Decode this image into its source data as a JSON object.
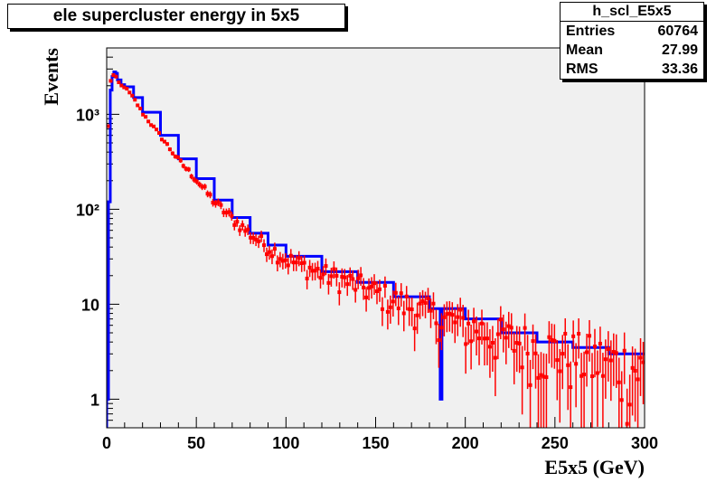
{
  "chart_data": {
    "type": "line",
    "title": "ele supercluster energy in 5x5",
    "xlabel": "E5x5 (GeV)",
    "ylabel": "Events",
    "xlim": [
      0,
      300
    ],
    "ylim": [
      0.5,
      5000
    ],
    "yscale": "log",
    "xticks": [
      0,
      50,
      100,
      150,
      200,
      250,
      300
    ],
    "xtick_labels": [
      "0",
      "50",
      "100",
      "150",
      "200",
      "250",
      "300"
    ],
    "yticks": [
      1,
      10,
      100,
      1000
    ],
    "ytick_labels": [
      "1",
      "10",
      "10²",
      "10³"
    ],
    "stats": {
      "name": "h_scl_E5x5",
      "rows": [
        {
          "label": "Entries",
          "value": "60764"
        },
        {
          "label": "Mean",
          "value": "27.99"
        },
        {
          "label": "RMS",
          "value": "33.36"
        }
      ]
    },
    "series": [
      {
        "color": "#0000ff",
        "style": "histogram-step",
        "x": [
          0,
          1,
          2,
          3,
          4,
          5,
          6,
          8,
          10,
          15,
          20,
          30,
          40,
          50,
          60,
          70,
          80,
          90,
          100,
          120,
          140,
          160,
          180,
          186,
          187,
          200,
          220,
          240,
          260,
          280,
          300
        ],
        "y": [
          1,
          120,
          1800,
          2500,
          2800,
          2700,
          2300,
          2050,
          1950,
          1500,
          1050,
          600,
          340,
          210,
          125,
          82,
          56,
          42,
          32,
          22,
          17,
          12,
          9,
          1,
          9,
          7,
          5,
          4,
          3.5,
          3,
          2.5
        ]
      },
      {
        "color": "#ff0000",
        "style": "markers-errors",
        "x": [
          0,
          1,
          2,
          3,
          4,
          5,
          6,
          8,
          10,
          15,
          20,
          30,
          40,
          50,
          60,
          70,
          80,
          90,
          100,
          120,
          140,
          160,
          180,
          200,
          220,
          240,
          260,
          280,
          300
        ],
        "y": [
          300,
          1000,
          2200,
          2500,
          2600,
          2500,
          2250,
          2000,
          1950,
          1480,
          1030,
          590,
          330,
          205,
          120,
          80,
          55,
          40,
          30,
          21,
          16,
          11,
          8,
          6,
          4.5,
          3.5,
          3,
          2.5,
          2
        ]
      }
    ]
  }
}
